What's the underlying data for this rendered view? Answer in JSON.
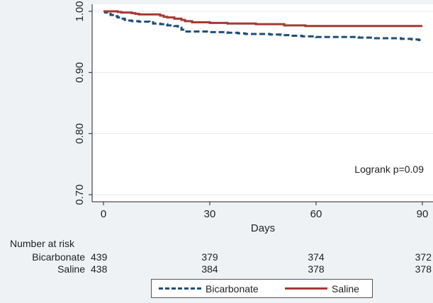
{
  "chart_data": {
    "type": "line",
    "title": "",
    "xlabel": "Days",
    "ylabel": "",
    "xlim": [
      0,
      90
    ],
    "ylim": [
      0.7,
      1.0
    ],
    "x_ticks": [
      "0",
      "30",
      "60",
      "90"
    ],
    "y_ticks": [
      "0.70",
      "0.80",
      "0.90",
      "1.00"
    ],
    "grid": true,
    "step": true,
    "colors": {
      "Bicarbonate": "#1f4e79",
      "Saline": "#a33a35"
    },
    "series": [
      {
        "name": "Bicarbonate",
        "style": "dashed",
        "x": [
          0,
          0.5,
          1,
          2,
          3,
          4,
          5,
          6,
          7,
          8,
          10,
          13,
          14,
          16,
          18,
          20,
          21,
          22,
          23,
          30,
          33,
          35,
          38,
          40,
          47,
          50,
          53,
          56,
          60,
          68,
          72,
          76,
          82,
          84,
          87,
          89,
          90
        ],
        "y": [
          1.0,
          0.998,
          0.996,
          0.994,
          0.992,
          0.99,
          0.988,
          0.986,
          0.985,
          0.984,
          0.983,
          0.982,
          0.98,
          0.979,
          0.977,
          0.976,
          0.973,
          0.97,
          0.967,
          0.966,
          0.966,
          0.965,
          0.964,
          0.963,
          0.962,
          0.961,
          0.96,
          0.959,
          0.958,
          0.958,
          0.957,
          0.956,
          0.956,
          0.955,
          0.954,
          0.953,
          0.953
        ]
      },
      {
        "name": "Saline",
        "style": "solid",
        "x": [
          0,
          3,
          4,
          5,
          8,
          9,
          10,
          16,
          17,
          18,
          20,
          22,
          23,
          25,
          30,
          35,
          43,
          51,
          57,
          90
        ],
        "y": [
          1.0,
          1.0,
          0.999,
          0.998,
          0.997,
          0.996,
          0.995,
          0.993,
          0.991,
          0.99,
          0.988,
          0.986,
          0.984,
          0.982,
          0.981,
          0.98,
          0.979,
          0.977,
          0.976,
          0.976
        ]
      }
    ],
    "annotation": "Logrank p=0.09",
    "legend": {
      "position": "bottom",
      "entries": [
        "Bicarbonate",
        "Saline"
      ]
    },
    "risk_table": {
      "header": "Number at risk",
      "times": [
        0,
        30,
        60,
        90
      ],
      "rows": [
        {
          "label": "Bicarbonate",
          "values": [
            "439",
            "379",
            "374",
            "372"
          ]
        },
        {
          "label": "Saline",
          "values": [
            "438",
            "384",
            "378",
            "378"
          ]
        }
      ]
    }
  }
}
